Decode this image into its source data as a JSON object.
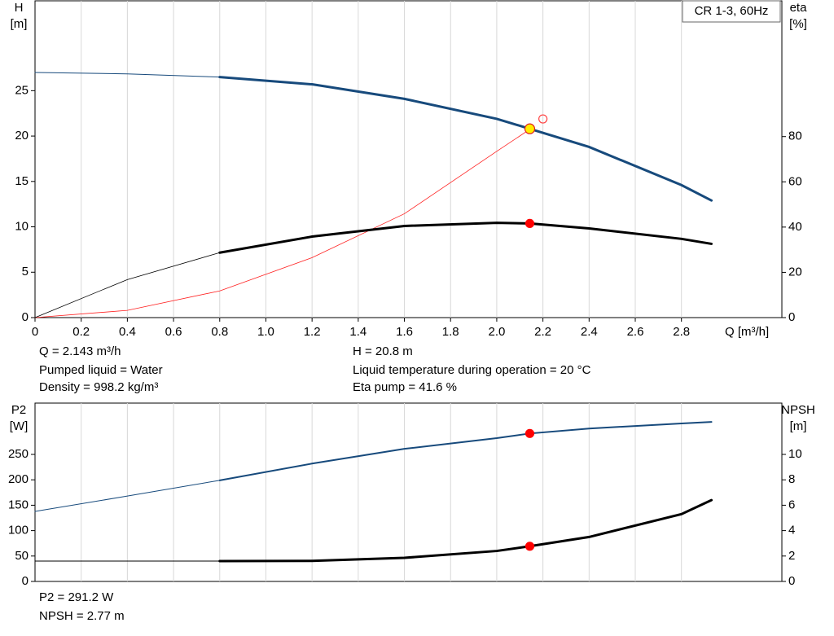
{
  "chart_data": [
    {
      "type": "line",
      "title": "CR 1-3, 60Hz",
      "xlabel": "Q [m³/h]",
      "ylabel": [
        "H",
        "[m]"
      ],
      "y2label": [
        "eta",
        "[%]"
      ],
      "xlim": [
        0,
        3.235
      ],
      "xticks": [
        0,
        0.2,
        0.4,
        0.6,
        0.8,
        {
          "value": 1,
          "label": "1.0"
        },
        1.2,
        1.4,
        1.6,
        1.8,
        {
          "value": 2,
          "label": "2.0"
        },
        2.2,
        2.4,
        2.6,
        2.8
      ],
      "ylim": [
        0,
        34.9
      ],
      "yticks": [
        0,
        5,
        10,
        15,
        20,
        25
      ],
      "y2lim": [
        0,
        140
      ],
      "y2ticks": [
        0,
        20,
        40,
        60,
        80
      ],
      "grid": "x",
      "series": [
        {
          "color": "#174a7c",
          "width": 1,
          "x": [
            0,
            0.4,
            0.8
          ],
          "values": [
            27.0,
            26.85,
            26.5
          ]
        },
        {
          "color": "#174a7c",
          "width": 3,
          "x": [
            0.8,
            1.2,
            1.6,
            2.0,
            2.143,
            2.4,
            2.8,
            2.93
          ],
          "values": [
            26.5,
            25.7,
            24.1,
            21.9,
            20.8,
            18.8,
            14.6,
            12.9
          ]
        },
        {
          "color": "#ff2020",
          "width": 0.8,
          "axis": "y2",
          "x": [
            0,
            0.4,
            0.8,
            1.2,
            1.6,
            2.0,
            2.143
          ],
          "values": [
            0,
            3.2,
            11.8,
            26.5,
            45.9,
            73.5,
            83.2
          ]
        },
        {
          "color": "#000000",
          "width": 0.8,
          "axis": "y2",
          "x": [
            0,
            0.4,
            0.8
          ],
          "values": [
            0,
            16.8,
            28.7
          ]
        },
        {
          "color": "#000000",
          "width": 3,
          "axis": "y2",
          "x": [
            0.8,
            1.2,
            1.6,
            2.0,
            2.143,
            2.4,
            2.8,
            2.93
          ],
          "values": [
            28.7,
            35.8,
            40.5,
            41.9,
            41.6,
            39.4,
            34.8,
            32.6
          ]
        },
        {
          "marker": true,
          "fill": "#ffee00",
          "stroke": "#e02020",
          "r": 6,
          "x": [
            2.143
          ],
          "values": [
            20.8
          ]
        },
        {
          "marker": true,
          "fill": "#ff0000",
          "stroke": "#ff0000",
          "r": 5,
          "axis": "y2",
          "x": [
            2.143
          ],
          "values": [
            41.6
          ]
        },
        {
          "marker": true,
          "fill": "none",
          "stroke": "#ff4040",
          "r": 5,
          "axis": "y2",
          "x": [
            2.2
          ],
          "values": [
            87.8
          ]
        }
      ],
      "annotations": [
        "Q = 2.143 m³/h",
        "Pumped liquid = Water",
        "Density = 998.2 kg/m³",
        "H = 20.8 m",
        "Liquid temperature during operation = 20 °C",
        "Eta pump = 41.6 %"
      ]
    },
    {
      "type": "line",
      "ylabel": [
        "P2",
        "[W]"
      ],
      "y2label": [
        "NPSH",
        "[m]"
      ],
      "xlim": [
        0,
        3.235
      ],
      "ylim": [
        0,
        351
      ],
      "yticks": [
        0,
        50,
        100,
        150,
        200,
        250
      ],
      "y2lim": [
        0,
        14.04
      ],
      "y2ticks": [
        0,
        2,
        4,
        6,
        8,
        10
      ],
      "grid": "x",
      "series": [
        {
          "color": "#174a7c",
          "width": 1,
          "x": [
            0,
            0.4,
            0.8
          ],
          "values": [
            137.8,
            168,
            199
          ]
        },
        {
          "color": "#174a7c",
          "width": 2,
          "x": [
            0.8,
            1.2,
            1.6,
            2.0,
            2.143,
            2.4,
            2.8,
            2.93
          ],
          "values": [
            199,
            232,
            261,
            282,
            291.2,
            301,
            311,
            314
          ]
        },
        {
          "color": "#000000",
          "width": 1,
          "axis": "y2",
          "x": [
            0,
            0.8
          ],
          "values": [
            1.6,
            1.6
          ]
        },
        {
          "color": "#000000",
          "width": 3,
          "axis": "y2",
          "x": [
            0.8,
            1.2,
            1.6,
            2.0,
            2.143,
            2.4,
            2.8,
            2.93
          ],
          "values": [
            1.6,
            1.62,
            1.86,
            2.4,
            2.77,
            3.5,
            5.3,
            6.4
          ]
        },
        {
          "marker": true,
          "fill": "#ff0000",
          "stroke": "#ff0000",
          "r": 5,
          "x": [
            2.143
          ],
          "values": [
            291.2
          ]
        },
        {
          "marker": true,
          "fill": "#ff0000",
          "stroke": "#ff0000",
          "r": 5,
          "axis": "y2",
          "x": [
            2.143
          ],
          "values": [
            2.77
          ]
        }
      ],
      "annotations": [
        "P2 = 291.2 W",
        "NPSH = 2.77 m"
      ]
    }
  ]
}
